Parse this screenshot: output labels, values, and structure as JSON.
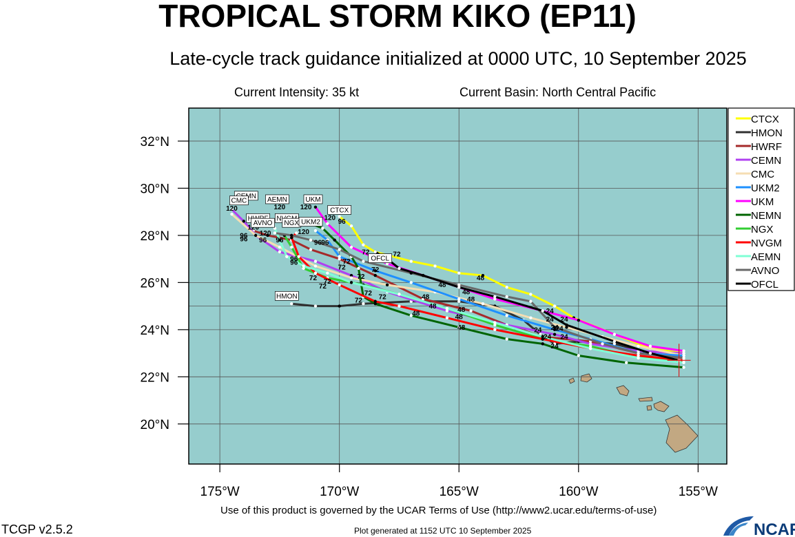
{
  "header": {
    "title": "TROPICAL STORM KIKO (EP11)",
    "subtitle": "Late-cycle track guidance initialized at 0000 UTC, 10 September 2025",
    "intensity": "Current Intensity: 35 kt",
    "basin": "Current Basin: North Central Pacific"
  },
  "footer": {
    "terms": "Use of this product is governed by the UCAR Terms of Use (http://www2.ucar.edu/terms-of-use)",
    "version": "TCGP v2.5.2",
    "generated": "Plot generated at 1152 UTC   10 September 2025",
    "logo_text": "NCAR"
  },
  "colors": {
    "ocean": "#96cdcd",
    "land": "#c2a882",
    "grid": "#555555",
    "marker": "#d81b1b"
  },
  "chart_data": {
    "type": "line",
    "title": "TROPICAL STORM KIKO (EP11)",
    "xlim": [
      -176.3,
      -153.8
    ],
    "ylim": [
      18.3,
      33.4
    ],
    "x_ticks": [
      -175,
      -170,
      -165,
      -160,
      -155
    ],
    "x_tick_labels": [
      "175°W",
      "170°W",
      "165°W",
      "160°W",
      "155°W"
    ],
    "y_ticks": [
      20,
      22,
      24,
      26,
      28,
      30,
      32
    ],
    "y_tick_labels": [
      "20°N",
      "22°N",
      "24°N",
      "26°N",
      "28°N",
      "30°N",
      "32°N"
    ],
    "grid": true,
    "legend_position": "right",
    "current_position": [
      -155.8,
      22.7
    ],
    "series": [
      {
        "name": "CTCX",
        "color": "#ffff00",
        "points": [
          [
            -155.6,
            23.0
          ],
          [
            -157.0,
            23.2
          ],
          [
            -158.5,
            23.8
          ],
          [
            -160.2,
            24.5
          ],
          [
            -161.0,
            25.0
          ],
          [
            -162.0,
            25.5
          ],
          [
            -163.0,
            25.8
          ],
          [
            -164.0,
            26.3
          ],
          [
            -165.0,
            26.4
          ],
          [
            -166.0,
            26.7
          ],
          [
            -167.0,
            26.9
          ],
          [
            -168.5,
            27.3
          ],
          [
            -169.0,
            27.6
          ],
          [
            -169.5,
            28.4
          ],
          [
            -170.0,
            28.8
          ]
        ]
      },
      {
        "name": "HMON",
        "color": "#303030",
        "points": [
          [
            -155.6,
            22.8
          ],
          [
            -157.0,
            23.0
          ],
          [
            -158.5,
            23.4
          ],
          [
            -160.0,
            23.5
          ],
          [
            -161.0,
            23.4
          ],
          [
            -161.6,
            23.8
          ],
          [
            -162.3,
            24.4
          ],
          [
            -163.5,
            25.0
          ],
          [
            -165.0,
            25.2
          ],
          [
            -167.0,
            25.2
          ],
          [
            -169.0,
            25.1
          ],
          [
            -170.0,
            25.0
          ],
          [
            -171.0,
            25.0
          ],
          [
            -172.0,
            25.1
          ]
        ]
      },
      {
        "name": "HWRF",
        "color": "#a52a2a",
        "points": [
          [
            -155.6,
            22.9
          ],
          [
            -157.5,
            23.0
          ],
          [
            -159.5,
            23.5
          ],
          [
            -161.5,
            23.7
          ],
          [
            -163.0,
            24.2
          ],
          [
            -164.5,
            24.8
          ],
          [
            -166.5,
            25.3
          ],
          [
            -168.5,
            26.3
          ],
          [
            -170.0,
            27.0
          ],
          [
            -171.2,
            27.4
          ],
          [
            -172.0,
            27.8
          ],
          [
            -173.0,
            28.0
          ],
          [
            -173.6,
            28.2
          ]
        ]
      },
      {
        "name": "CEMN",
        "color": "#b040f0",
        "points": [
          [
            -155.6,
            23.0
          ],
          [
            -157.5,
            23.1
          ],
          [
            -159.5,
            23.4
          ],
          [
            -161.0,
            23.8
          ],
          [
            -163.0,
            24.2
          ],
          [
            -165.5,
            24.8
          ],
          [
            -168.0,
            25.6
          ],
          [
            -169.5,
            26.3
          ],
          [
            -171.0,
            26.9
          ],
          [
            -172.5,
            27.3
          ],
          [
            -173.5,
            28.0
          ],
          [
            -174.0,
            28.6
          ],
          [
            -174.5,
            29.1
          ]
        ]
      },
      {
        "name": "CMC",
        "color": "#f5deb3",
        "points": [
          [
            -155.6,
            22.9
          ],
          [
            -157.5,
            23.3
          ],
          [
            -159.0,
            23.7
          ],
          [
            -160.5,
            24.1
          ],
          [
            -162.0,
            24.5
          ],
          [
            -164.0,
            25.1
          ],
          [
            -166.0,
            25.6
          ],
          [
            -168.0,
            25.9
          ],
          [
            -169.5,
            26.2
          ],
          [
            -171.0,
            26.7
          ],
          [
            -172.5,
            27.5
          ],
          [
            -173.5,
            28.0
          ],
          [
            -174.5,
            28.9
          ]
        ]
      },
      {
        "name": "UKM2",
        "color": "#1e90ff",
        "points": [
          [
            -155.6,
            22.9
          ],
          [
            -157.5,
            23.0
          ],
          [
            -159.5,
            23.6
          ],
          [
            -161.0,
            24.0
          ],
          [
            -163.0,
            24.6
          ],
          [
            -165.0,
            25.3
          ],
          [
            -167.0,
            26.0
          ],
          [
            -168.5,
            26.5
          ],
          [
            -170.0,
            27.1
          ],
          [
            -170.5,
            27.8
          ],
          [
            -171.0,
            28.2
          ]
        ]
      },
      {
        "name": "UKM",
        "color": "#ff00ff",
        "points": [
          [
            -155.6,
            23.1
          ],
          [
            -157.0,
            23.3
          ],
          [
            -158.5,
            23.8
          ],
          [
            -160.0,
            24.4
          ],
          [
            -161.5,
            24.8
          ],
          [
            -163.5,
            25.3
          ],
          [
            -165.0,
            25.8
          ],
          [
            -166.5,
            26.3
          ],
          [
            -168.0,
            26.8
          ],
          [
            -169.5,
            27.5
          ],
          [
            -170.5,
            28.5
          ],
          [
            -171.0,
            29.2
          ]
        ]
      },
      {
        "name": "NEMN",
        "color": "#006400",
        "points": [
          [
            -155.6,
            22.4
          ],
          [
            -158.0,
            22.6
          ],
          [
            -160.0,
            22.9
          ],
          [
            -161.5,
            23.4
          ],
          [
            -163.0,
            23.6
          ],
          [
            -165.0,
            24.1
          ],
          [
            -167.0,
            24.6
          ],
          [
            -168.5,
            25.1
          ],
          [
            -169.0,
            25.4
          ],
          [
            -169.2,
            26.6
          ],
          [
            -169.5,
            27.1
          ],
          [
            -170.2,
            27.8
          ],
          [
            -170.7,
            28.3
          ],
          [
            -171.2,
            28.5
          ]
        ]
      },
      {
        "name": "NGX",
        "color": "#32cd32",
        "points": [
          [
            -155.6,
            22.7
          ],
          [
            -157.5,
            22.8
          ],
          [
            -159.5,
            23.3
          ],
          [
            -161.5,
            23.6
          ],
          [
            -163.5,
            24.2
          ],
          [
            -165.5,
            24.9
          ],
          [
            -167.5,
            25.5
          ],
          [
            -169.0,
            25.9
          ],
          [
            -170.5,
            26.2
          ],
          [
            -171.5,
            26.6
          ],
          [
            -172.0,
            27.5
          ],
          [
            -172.3,
            28.0
          ]
        ]
      },
      {
        "name": "NVGM",
        "color": "#ff0000",
        "points": [
          [
            -155.6,
            22.7
          ],
          [
            -157.5,
            22.9
          ],
          [
            -159.5,
            23.2
          ],
          [
            -161.5,
            23.6
          ],
          [
            -163.5,
            24.0
          ],
          [
            -165.5,
            24.5
          ],
          [
            -167.5,
            25.0
          ],
          [
            -168.5,
            25.2
          ],
          [
            -170.0,
            25.9
          ],
          [
            -171.0,
            26.4
          ],
          [
            -171.7,
            27.1
          ],
          [
            -172.0,
            27.9
          ],
          [
            -171.8,
            28.1
          ]
        ]
      },
      {
        "name": "AEMN",
        "color": "#7fffd4",
        "points": [
          [
            -155.6,
            22.6
          ],
          [
            -157.5,
            22.8
          ],
          [
            -159.5,
            23.2
          ],
          [
            -161.5,
            23.7
          ],
          [
            -163.5,
            24.3
          ],
          [
            -165.5,
            24.9
          ],
          [
            -167.5,
            25.5
          ],
          [
            -169.5,
            26.0
          ],
          [
            -170.5,
            26.4
          ],
          [
            -171.5,
            26.7
          ],
          [
            -172.2,
            27.1
          ],
          [
            -172.5,
            27.8
          ],
          [
            -172.7,
            28.3
          ]
        ]
      },
      {
        "name": "AVNO",
        "color": "#696969",
        "points": [
          [
            -155.6,
            22.8
          ],
          [
            -157.5,
            23.0
          ],
          [
            -159.0,
            23.4
          ],
          [
            -161.0,
            24.1
          ],
          [
            -162.0,
            25.2
          ],
          [
            -163.0,
            25.4
          ],
          [
            -165.0,
            25.9
          ],
          [
            -167.0,
            26.4
          ],
          [
            -169.0,
            26.9
          ],
          [
            -170.0,
            27.4
          ],
          [
            -171.2,
            27.8
          ],
          [
            -172.0,
            28.0
          ],
          [
            -172.7,
            28.1
          ]
        ]
      },
      {
        "name": "OFCL",
        "color": "#000000",
        "points": [
          [
            -155.8,
            22.7
          ],
          [
            -157.0,
            23.0
          ],
          [
            -158.5,
            23.5
          ],
          [
            -160.5,
            24.2
          ],
          [
            -161.5,
            24.8
          ],
          [
            -163.5,
            25.4
          ],
          [
            -165.0,
            25.8
          ],
          [
            -166.5,
            26.3
          ],
          [
            -167.5,
            26.6
          ],
          [
            -168.0,
            27.0
          ],
          [
            -168.5,
            27.3
          ]
        ]
      }
    ],
    "hour_labels": [
      {
        "text": "24",
        "x": -161.2,
        "y": 24.7
      },
      {
        "text": "24",
        "x": -161.2,
        "y": 24.35
      },
      {
        "text": "24",
        "x": -161.0,
        "y": 24.0
      },
      {
        "text": "24",
        "x": -160.6,
        "y": 24.35
      },
      {
        "text": "24",
        "x": -160.8,
        "y": 23.95
      },
      {
        "text": "24",
        "x": -161.7,
        "y": 23.9
      },
      {
        "text": "24",
        "x": -161.0,
        "y": 23.2
      },
      {
        "text": "24",
        "x": -161.3,
        "y": 23.6
      },
      {
        "text": "24",
        "x": -160.6,
        "y": 23.6
      },
      {
        "text": "48",
        "x": -165.7,
        "y": 25.8
      },
      {
        "text": "48",
        "x": -164.7,
        "y": 25.5
      },
      {
        "text": "48",
        "x": -164.5,
        "y": 25.2
      },
      {
        "text": "48",
        "x": -164.9,
        "y": 24.75
      },
      {
        "text": "48",
        "x": -165.0,
        "y": 24.45
      },
      {
        "text": "48",
        "x": -164.9,
        "y": 24.0
      },
      {
        "text": "48",
        "x": -166.4,
        "y": 25.3
      },
      {
        "text": "48",
        "x": -166.1,
        "y": 24.9
      },
      {
        "text": "48",
        "x": -166.8,
        "y": 24.6
      },
      {
        "text": "48",
        "x": -164.1,
        "y": 26.1
      },
      {
        "text": "72",
        "x": -168.9,
        "y": 27.2
      },
      {
        "text": "72",
        "x": -169.7,
        "y": 26.8
      },
      {
        "text": "72",
        "x": -169.9,
        "y": 26.55
      },
      {
        "text": "72",
        "x": -169.1,
        "y": 26.15
      },
      {
        "text": "72",
        "x": -168.5,
        "y": 26.45
      },
      {
        "text": "72",
        "x": -167.6,
        "y": 27.1
      },
      {
        "text": "72",
        "x": -170.5,
        "y": 25.95
      },
      {
        "text": "72",
        "x": -171.1,
        "y": 26.1
      },
      {
        "text": "72",
        "x": -170.7,
        "y": 25.75
      },
      {
        "text": "72",
        "x": -168.2,
        "y": 25.3
      },
      {
        "text": "72",
        "x": -168.8,
        "y": 25.45
      },
      {
        "text": "72",
        "x": -169.2,
        "y": 25.15
      },
      {
        "text": "96",
        "x": -169.9,
        "y": 28.5
      },
      {
        "text": "96",
        "x": -170.6,
        "y": 27.6
      },
      {
        "text": "96",
        "x": -170.9,
        "y": 27.6
      },
      {
        "text": "96",
        "x": -171.9,
        "y": 26.9
      },
      {
        "text": "96",
        "x": -171.9,
        "y": 26.75
      },
      {
        "text": "96",
        "x": -172.5,
        "y": 27.7
      },
      {
        "text": "96",
        "x": -173.2,
        "y": 27.7
      },
      {
        "text": "96",
        "x": -174.0,
        "y": 27.9
      },
      {
        "text": "96",
        "x": -174.0,
        "y": 27.75
      },
      {
        "text": "120",
        "x": -171.4,
        "y": 29.1
      },
      {
        "text": "120",
        "x": -170.4,
        "y": 28.65
      },
      {
        "text": "120",
        "x": -172.5,
        "y": 29.1
      },
      {
        "text": "120",
        "x": -173.6,
        "y": 28.25
      },
      {
        "text": "120",
        "x": -173.1,
        "y": 28.0
      },
      {
        "text": "120",
        "x": -174.1,
        "y": 29.3
      },
      {
        "text": "120",
        "x": -174.5,
        "y": 29.05
      },
      {
        "text": "120",
        "x": -171.5,
        "y": 28.05
      }
    ],
    "track_labels": [
      {
        "text": "CEMN",
        "x": -173.9,
        "y": 29.55
      },
      {
        "text": "CMC",
        "x": -174.2,
        "y": 29.35
      },
      {
        "text": "AEMN",
        "x": -172.6,
        "y": 29.4
      },
      {
        "text": "UKM",
        "x": -171.1,
        "y": 29.4
      },
      {
        "text": "CTCX",
        "x": -170.0,
        "y": 28.95
      },
      {
        "text": "HWRF",
        "x": -173.4,
        "y": 28.6
      },
      {
        "text": "NVGM",
        "x": -172.2,
        "y": 28.6
      },
      {
        "text": "AVNO",
        "x": -173.2,
        "y": 28.4
      },
      {
        "text": "NGX",
        "x": -172.0,
        "y": 28.4
      },
      {
        "text": "UKM2",
        "x": -171.2,
        "y": 28.45
      },
      {
        "text": "OFCL",
        "x": -168.3,
        "y": 26.9
      },
      {
        "text": "HMON",
        "x": -172.2,
        "y": 25.3
      }
    ]
  }
}
